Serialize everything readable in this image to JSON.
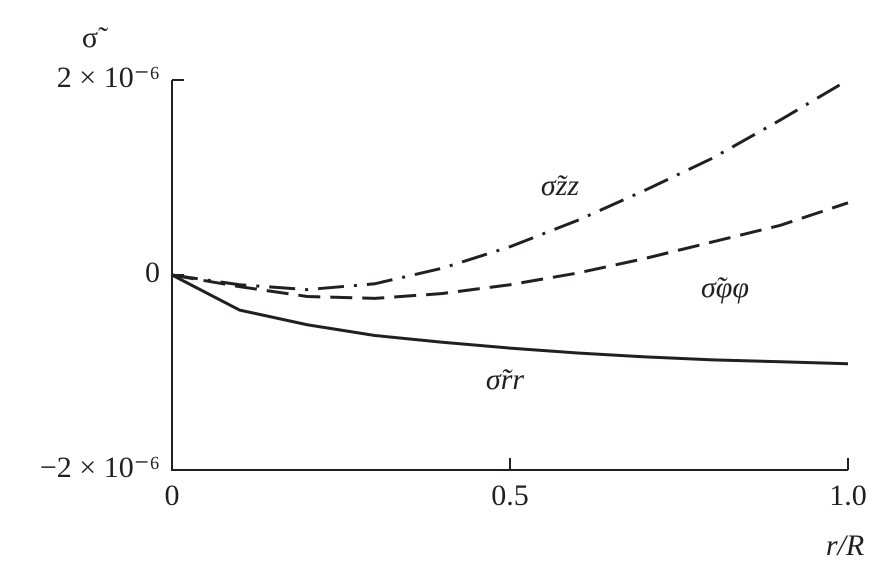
{
  "chart_data": {
    "type": "line",
    "y_label": "σ̃",
    "x_label": "r/R",
    "x": [
      0,
      0.1,
      0.2,
      0.3,
      0.4,
      0.5,
      0.6,
      0.7,
      0.8,
      0.9,
      1.0
    ],
    "series": [
      {
        "name": "σ̃rr",
        "color": "#231f20",
        "dash": "solid",
        "values": [
          0,
          -3.6e-07,
          -5.1e-07,
          -6.2e-07,
          -6.9e-07,
          -7.5e-07,
          -8e-07,
          -8.4e-07,
          -8.7e-07,
          -8.9e-07,
          -9.1e-07
        ]
      },
      {
        "name": "σ̃φφ",
        "color": "#231f20",
        "dash": "dashed",
        "values": [
          0,
          -1.2e-07,
          -2.2e-07,
          -2.4e-07,
          -1.9e-07,
          -1e-07,
          2e-08,
          1.7e-07,
          3.4e-07,
          5.1e-07,
          7.4e-07
        ]
      },
      {
        "name": "σ̃zz",
        "color": "#231f20",
        "dash": "dashdot",
        "values": [
          0,
          -1e-07,
          -1.5e-07,
          -9e-08,
          7e-08,
          2.9e-07,
          5.6e-07,
          8.7e-07,
          1.2e-06,
          1.59e-06,
          2e-06
        ]
      }
    ],
    "xlim": [
      0,
      1.0
    ],
    "ylim": [
      -2e-06,
      2e-06
    ],
    "xticks": [
      0,
      0.5,
      {
        "value": 1.0,
        "label": "1.0"
      }
    ],
    "yticks": [
      {
        "value": -2e-06,
        "label": "−2 × 10⁻⁶"
      },
      0,
      {
        "value": 2e-06,
        "label": "2 × 10⁻⁶"
      }
    ]
  }
}
